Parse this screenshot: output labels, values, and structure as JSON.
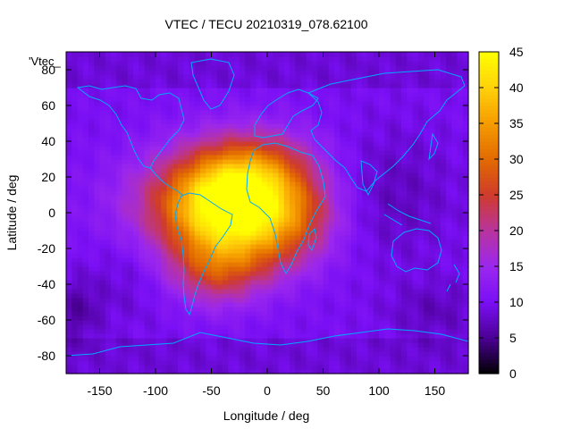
{
  "chart_data": {
    "type": "heatmap",
    "title": "VTEC / TECU 20210319_078.62100",
    "xlabel": "Longitude / deg",
    "ylabel": "Latitude / deg",
    "xlim": [
      -180,
      180
    ],
    "ylim": [
      -90,
      90
    ],
    "x_ticks": [
      -150,
      -100,
      -50,
      0,
      50,
      100,
      150
    ],
    "y_ticks": [
      -80,
      -60,
      -40,
      -20,
      0,
      20,
      40,
      60,
      80
    ],
    "colorbar": {
      "range": [
        0,
        45
      ],
      "ticks": [
        0,
        5,
        10,
        15,
        20,
        25,
        30,
        35,
        40,
        45
      ]
    },
    "legend_label": "'Vtec_",
    "grid": false,
    "palette": [
      "#000000",
      "#4b0094",
      "#7a0ff5",
      "#9b27ee",
      "#b8349e",
      "#cf3b2c",
      "#e26a00",
      "#f59b00",
      "#ffd10a",
      "#ffff00"
    ],
    "coastline_color": "#00aaff",
    "features": [
      {
        "lon": -25,
        "lat": 8,
        "amp": 32,
        "sx": 42,
        "sy": 20
      },
      {
        "lon": -55,
        "lat": 0,
        "amp": 12,
        "sx": 55,
        "sy": 22
      },
      {
        "lon": -45,
        "lat": -32,
        "amp": 12,
        "sx": 30,
        "sy": 14
      },
      {
        "lon": 0,
        "lat": 28,
        "amp": 5,
        "sx": 35,
        "sy": 14
      },
      {
        "lon": 15,
        "lat": -18,
        "amp": 5,
        "sx": 30,
        "sy": 14
      },
      {
        "lon": 35,
        "lat": 0,
        "amp": 4,
        "sx": 25,
        "sy": 12
      },
      {
        "lon": 110,
        "lat": 10,
        "amp": -3,
        "sx": 40,
        "sy": 25
      },
      {
        "lon": -120,
        "lat": -30,
        "amp": -3,
        "sx": 30,
        "sy": 20
      },
      {
        "lon": 150,
        "lat": -55,
        "amp": -3,
        "sx": 30,
        "sy": 12
      },
      {
        "lon": -170,
        "lat": -55,
        "amp": -4,
        "sx": 15,
        "sy": 12
      }
    ],
    "base_level": 10
  }
}
